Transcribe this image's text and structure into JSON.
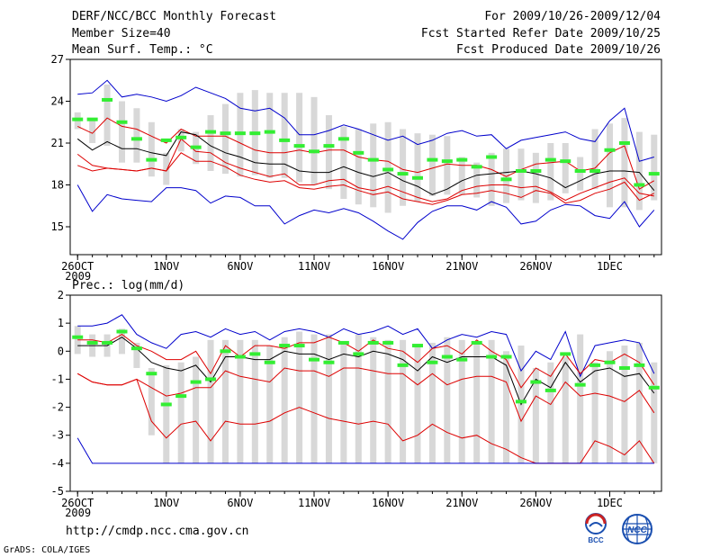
{
  "header": {
    "title": "DERF/NCC/BCC Monthly Forecast",
    "member_size": "Member Size=40",
    "period": "For 2009/10/26-2009/12/04",
    "start_date": "Fcst Started Refer Date 2009/10/25",
    "produced_date": "Fcst Produced Date 2009/10/26"
  },
  "footer": {
    "url": "http://cmdp.ncc.cma.gov.cn",
    "grads": "GrADS: COLA/IGES",
    "logo_bcc": "BCC",
    "logo_ncc": "NCC"
  },
  "colors": {
    "range": "#0000cc",
    "spread": "#dd0000",
    "mean": "#000000",
    "box": "#d8d8d8",
    "marker": "#33ee33"
  },
  "chart_data": [
    {
      "type": "box",
      "title": "Mean Surf. Temp.: °C",
      "x_tick_labels": [
        "26OCT",
        "1NOV",
        "6NOV",
        "11NOV",
        "16NOV",
        "21NOV",
        "26NOV",
        "1DEC"
      ],
      "x_tick_days": [
        1,
        7,
        12,
        17,
        22,
        27,
        32,
        37
      ],
      "x_year_label": "2009",
      "ylim": [
        13,
        27
      ],
      "y_ticks": [
        15,
        18,
        21,
        24,
        27
      ],
      "days": 40,
      "box_top": [
        23.2,
        22.8,
        25.2,
        24.0,
        23.5,
        22.5,
        20.3,
        22.0,
        21.8,
        23.0,
        23.8,
        24.6,
        24.8,
        24.6,
        24.6,
        24.6,
        24.3,
        23.0,
        22.2,
        22.0,
        22.4,
        22.5,
        22.0,
        21.7,
        21.6,
        21.5,
        20.0,
        19.6,
        20.3,
        20.6,
        20.6,
        20.3,
        21.0,
        21.0,
        20.0,
        22.0,
        22.4,
        22.8,
        21.8,
        21.6
      ],
      "box_bottom": [
        22.0,
        21.0,
        20.8,
        19.6,
        19.6,
        18.6,
        18.0,
        20.4,
        19.5,
        19.0,
        18.8,
        18.6,
        18.7,
        18.5,
        18.5,
        18.2,
        18.0,
        17.7,
        17.0,
        16.6,
        16.4,
        16.0,
        16.5,
        16.8,
        17.2,
        17.3,
        17.3,
        17.1,
        16.5,
        16.7,
        16.9,
        16.7,
        16.9,
        17.4,
        17.6,
        17.7,
        16.4,
        16.4,
        16.2,
        16.9
      ],
      "markers": [
        22.7,
        22.7,
        24.1,
        22.5,
        21.3,
        19.8,
        21.2,
        21.4,
        20.7,
        21.8,
        21.7,
        21.7,
        21.7,
        21.8,
        21.2,
        20.8,
        20.4,
        20.8,
        21.3,
        20.3,
        19.8,
        19.1,
        18.8,
        18.5,
        19.8,
        19.7,
        19.8,
        19.3,
        20.0,
        18.4,
        19.0,
        19.0,
        19.8,
        19.7,
        19.0,
        19.0,
        20.5,
        21.0,
        18.0,
        18.8
      ],
      "series": [
        {
          "name": "max",
          "style": "range",
          "values": [
            24.5,
            24.6,
            25.5,
            24.3,
            24.5,
            24.3,
            24.0,
            24.4,
            25.0,
            24.6,
            24.2,
            23.5,
            23.3,
            23.5,
            22.8,
            21.6,
            21.6,
            21.9,
            22.3,
            22.0,
            21.6,
            21.2,
            21.5,
            20.9,
            21.2,
            21.7,
            21.9,
            21.5,
            21.6,
            20.6,
            21.2,
            21.4,
            21.6,
            21.8,
            21.3,
            21.1,
            22.6,
            23.5,
            19.7,
            20.0
          ]
        },
        {
          "name": "upper",
          "style": "spread",
          "values": [
            22.2,
            21.7,
            22.8,
            22.2,
            22.0,
            21.5,
            21.0,
            22.0,
            21.5,
            21.5,
            21.5,
            21.0,
            20.5,
            20.3,
            20.3,
            20.5,
            20.3,
            20.5,
            20.5,
            20.0,
            19.8,
            19.7,
            19.1,
            18.9,
            19.2,
            19.5,
            19.4,
            19.4,
            19.1,
            18.6,
            19.1,
            19.5,
            19.6,
            19.7,
            19.0,
            19.2,
            20.3,
            20.8,
            17.7,
            18.3
          ]
        },
        {
          "name": "mean",
          "style": "mean",
          "values": [
            21.3,
            20.5,
            21.1,
            20.6,
            20.6,
            20.3,
            20.1,
            21.8,
            21.6,
            20.8,
            20.3,
            20.0,
            19.6,
            19.5,
            19.5,
            19.0,
            18.9,
            18.9,
            19.3,
            18.9,
            18.6,
            18.9,
            18.3,
            17.9,
            17.3,
            17.7,
            18.3,
            18.7,
            18.8,
            18.9,
            19.0,
            18.8,
            18.5,
            17.8,
            18.3,
            18.8,
            19.0,
            19.0,
            18.9,
            17.6
          ]
        },
        {
          "name": "lower",
          "style": "spread",
          "values": [
            20.2,
            19.4,
            19.2,
            19.1,
            19.0,
            19.2,
            19.0,
            21.3,
            20.4,
            20.3,
            19.6,
            19.2,
            18.9,
            18.6,
            18.8,
            18.0,
            18.0,
            18.3,
            18.4,
            17.8,
            17.6,
            17.9,
            17.5,
            17.1,
            16.8,
            17.0,
            17.6,
            17.9,
            18.0,
            18.0,
            17.8,
            17.9,
            17.5,
            16.9,
            17.4,
            17.8,
            18.2,
            18.5,
            17.4,
            17.2
          ]
        },
        {
          "name": "lower2",
          "style": "spread",
          "values": [
            19.4,
            19.0,
            19.2,
            19.1,
            19.0,
            19.2,
            19.0,
            20.3,
            19.7,
            19.7,
            19.3,
            18.7,
            18.4,
            18.2,
            18.3,
            17.8,
            17.7,
            17.9,
            18.0,
            17.6,
            17.3,
            17.5,
            17.0,
            16.8,
            16.6,
            16.9,
            17.3,
            17.4,
            17.6,
            17.4,
            17.1,
            17.6,
            17.4,
            16.7,
            16.9,
            17.4,
            17.7,
            18.2,
            16.9,
            17.4
          ]
        },
        {
          "name": "min",
          "style": "range",
          "values": [
            18.0,
            16.1,
            17.3,
            17.0,
            16.9,
            16.8,
            17.8,
            17.8,
            17.6,
            16.7,
            17.2,
            17.1,
            16.5,
            16.5,
            15.2,
            15.8,
            16.2,
            16.0,
            16.3,
            16.0,
            15.4,
            14.7,
            14.1,
            15.3,
            16.1,
            16.5,
            16.5,
            16.2,
            16.8,
            16.4,
            15.2,
            15.4,
            16.2,
            16.6,
            16.5,
            15.8,
            15.6,
            16.8,
            15.0,
            16.2
          ]
        }
      ]
    },
    {
      "type": "box",
      "title": "Prec.: log(mm/d)",
      "x_tick_labels": [
        "26OCT",
        "1NOV",
        "6NOV",
        "11NOV",
        "16NOV",
        "21NOV",
        "26NOV",
        "1DEC"
      ],
      "x_tick_days": [
        1,
        7,
        12,
        17,
        22,
        27,
        32,
        37
      ],
      "x_year_label": "2009",
      "ylim": [
        -5,
        2
      ],
      "y_ticks": [
        -5,
        -4,
        -3,
        -2,
        -1,
        0,
        1,
        2
      ],
      "days": 40,
      "box_top": [
        0.9,
        0.6,
        0.6,
        0.8,
        0.3,
        -0.6,
        -0.5,
        -0.4,
        -0.2,
        0.4,
        0.4,
        0.4,
        0.4,
        0.2,
        0.5,
        0.7,
        0.6,
        0.6,
        0.3,
        0.6,
        0.5,
        0.4,
        0.4,
        0.2,
        0.3,
        0.5,
        0.4,
        0.3,
        0.4,
        0.0,
        0.2,
        -0.6,
        -0.4,
        -0.2,
        0.6,
        -0.4,
        0.0,
        0.2,
        0.3,
        -0.4
      ],
      "box_bottom": [
        -0.1,
        -0.2,
        -0.2,
        -0.1,
        -0.6,
        -3.0,
        -4.0,
        -4.0,
        -4.0,
        -4.0,
        -4.0,
        -4.0,
        -4.0,
        -4.0,
        -4.0,
        -4.0,
        -4.0,
        -4.0,
        -4.0,
        -4.0,
        -4.0,
        -4.0,
        -4.0,
        -4.0,
        -4.0,
        -4.0,
        -4.0,
        -4.0,
        -4.0,
        -4.0,
        -4.0,
        -4.0,
        -4.0,
        -4.0,
        -4.0,
        -4.0,
        -4.0,
        -4.0,
        -4.0,
        -4.0
      ],
      "markers": [
        0.5,
        0.3,
        0.3,
        0.7,
        0.1,
        -0.8,
        -1.9,
        -1.6,
        -1.1,
        -1.0,
        0.0,
        -0.2,
        -0.1,
        -0.4,
        0.2,
        0.2,
        -0.3,
        -0.4,
        0.3,
        -0.1,
        0.3,
        0.3,
        -0.5,
        0.2,
        -0.4,
        -0.2,
        -0.3,
        0.3,
        -0.2,
        -0.2,
        -1.8,
        -1.1,
        -1.4,
        -0.1,
        -1.2,
        -0.5,
        -0.4,
        -0.6,
        -0.5,
        -1.3
      ],
      "series": [
        {
          "name": "max",
          "style": "range",
          "values": [
            0.9,
            0.9,
            1.0,
            1.3,
            0.6,
            0.3,
            0.1,
            0.6,
            0.7,
            0.5,
            0.8,
            0.6,
            0.7,
            0.4,
            0.7,
            0.8,
            0.7,
            0.5,
            0.8,
            0.6,
            0.7,
            0.9,
            0.6,
            0.8,
            0.1,
            0.4,
            0.6,
            0.5,
            0.7,
            0.6,
            -0.7,
            0.0,
            -0.3,
            0.7,
            -0.9,
            0.2,
            0.3,
            0.4,
            0.3,
            -0.8
          ]
        },
        {
          "name": "upper",
          "style": "spread",
          "values": [
            0.4,
            0.4,
            0.3,
            0.6,
            0.2,
            0.0,
            -0.3,
            -0.3,
            0.0,
            -0.8,
            0.2,
            -0.2,
            0.2,
            0.2,
            0.1,
            0.3,
            0.3,
            0.5,
            0.3,
            0.0,
            0.4,
            0.1,
            0.0,
            -0.4,
            0.1,
            0.2,
            -0.1,
            0.4,
            0.0,
            -0.3,
            -1.3,
            -0.6,
            -0.9,
            -0.1,
            -0.8,
            -0.3,
            -0.4,
            -0.1,
            -0.4,
            -1.2
          ]
        },
        {
          "name": "mean",
          "style": "mean",
          "values": [
            0.2,
            0.2,
            0.2,
            0.5,
            0.1,
            -0.4,
            -0.6,
            -0.7,
            -0.5,
            -1.1,
            -0.2,
            -0.2,
            -0.3,
            -0.3,
            0.0,
            -0.1,
            -0.1,
            -0.3,
            -0.1,
            -0.2,
            0.0,
            -0.1,
            -0.3,
            -0.7,
            -0.2,
            -0.4,
            -0.2,
            -0.2,
            -0.2,
            -0.5,
            -1.9,
            -1.0,
            -1.3,
            -0.4,
            -1.1,
            -0.7,
            -0.6,
            -0.9,
            -0.8,
            -1.5
          ]
        },
        {
          "name": "lower",
          "style": "spread",
          "values": [
            -0.8,
            -1.1,
            -1.2,
            -1.2,
            -1.0,
            -1.3,
            -1.6,
            -1.5,
            -1.3,
            -1.3,
            -0.7,
            -0.9,
            -1.0,
            -1.1,
            -0.6,
            -0.7,
            -0.7,
            -0.9,
            -0.6,
            -0.6,
            -0.7,
            -0.8,
            -0.8,
            -1.2,
            -0.8,
            -1.2,
            -1.0,
            -0.9,
            -0.9,
            -1.1,
            -2.5,
            -1.6,
            -1.9,
            -1.1,
            -1.6,
            -1.5,
            -1.6,
            -1.8,
            -1.4,
            -2.2
          ]
        },
        {
          "name": "lower2",
          "style": "spread",
          "values": [
            -0.8,
            -1.1,
            -1.2,
            -1.2,
            -1.0,
            -2.5,
            -3.1,
            -2.6,
            -2.5,
            -3.2,
            -2.5,
            -2.6,
            -2.6,
            -2.5,
            -2.2,
            -2.0,
            -2.2,
            -2.4,
            -2.5,
            -2.6,
            -2.5,
            -2.6,
            -3.2,
            -3.0,
            -2.6,
            -2.9,
            -3.1,
            -3.0,
            -3.3,
            -3.5,
            -3.8,
            -4.0,
            -4.0,
            -4.0,
            -4.0,
            -3.2,
            -3.4,
            -3.7,
            -3.2,
            -4.0
          ]
        },
        {
          "name": "min",
          "style": "range",
          "values": [
            -3.1,
            -4.0,
            -4.0,
            -4.0,
            -4.0,
            -4.0,
            -4.0,
            -4.0,
            -4.0,
            -4.0,
            -4.0,
            -4.0,
            -4.0,
            -4.0,
            -4.0,
            -4.0,
            -4.0,
            -4.0,
            -4.0,
            -4.0,
            -4.0,
            -4.0,
            -4.0,
            -4.0,
            -4.0,
            -4.0,
            -4.0,
            -4.0,
            -4.0,
            -4.0,
            -4.0,
            -4.0,
            -4.0,
            -4.0,
            -4.0,
            -4.0,
            -4.0,
            -4.0,
            -4.0,
            -4.0
          ]
        }
      ]
    }
  ]
}
